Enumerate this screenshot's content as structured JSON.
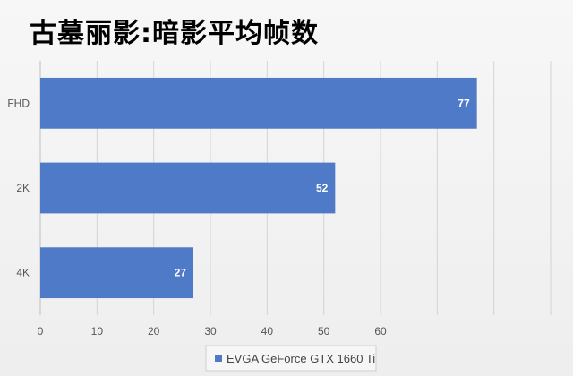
{
  "chart_data": {
    "type": "bar",
    "orientation": "horizontal",
    "title": "古墓丽影:暗影平均帧数",
    "categories": [
      "FHD",
      "2K",
      "4K"
    ],
    "series": [
      {
        "name": "EVGA GeForce GTX 1660 Ti",
        "values": [
          77,
          52,
          27
        ]
      }
    ],
    "xlim": [
      0,
      90
    ],
    "x_ticks": [
      0,
      10,
      20,
      30,
      40,
      50,
      60
    ],
    "grid": "vertical",
    "legend_position": "bottom",
    "bar_color": "#4e7ac7",
    "data_labels": true
  }
}
